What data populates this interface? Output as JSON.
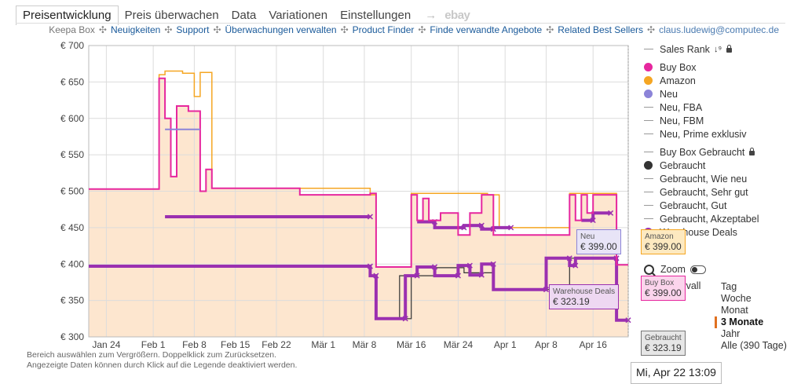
{
  "tabs": [
    {
      "label": "Preisentwicklung",
      "active": true
    },
    {
      "label": "Preis überwachen",
      "active": false
    },
    {
      "label": "Data",
      "active": false
    },
    {
      "label": "Variationen",
      "active": false
    },
    {
      "label": "Einstellungen",
      "active": false
    }
  ],
  "tabs_arrow": "→",
  "tabs_ebay": "ebay",
  "links": {
    "brand": "Keepa Box",
    "items": [
      "Neuigkeiten",
      "Support",
      "Überwachungen verwalten",
      "Product Finder",
      "Finde verwandte Angebote",
      "Related Best Sellers"
    ],
    "email": "claus.ludewig@computec.de",
    "separator": "✣"
  },
  "legend": {
    "sales_rank": "Sales Rank",
    "items": [
      {
        "label": "Buy Box",
        "color": "#e6279e",
        "kind": "dot"
      },
      {
        "label": "Amazon",
        "color": "#f5a623",
        "kind": "dot"
      },
      {
        "label": "Neu",
        "color": "#8c84d8",
        "kind": "dot"
      },
      {
        "label": "Neu, FBA",
        "kind": "line"
      },
      {
        "label": "Neu, FBM",
        "kind": "line"
      },
      {
        "label": "Neu, Prime exklusiv",
        "kind": "line"
      }
    ],
    "used_items": [
      {
        "label": "Buy Box Gebraucht",
        "kind": "line",
        "lock": true
      },
      {
        "label": "Gebraucht",
        "color": "#333333",
        "kind": "dot"
      },
      {
        "label": "Gebraucht, Wie neu",
        "kind": "line"
      },
      {
        "label": "Gebraucht, Sehr gut",
        "kind": "line"
      },
      {
        "label": "Gebraucht, Gut",
        "kind": "line"
      },
      {
        "label": "Gebraucht, Akzeptabel",
        "kind": "line"
      },
      {
        "label": "Warehouse Deals",
        "color": "#9b30b0",
        "kind": "dot"
      }
    ]
  },
  "zoom_label": "Zoom",
  "intervall_label": "tervall",
  "ranges": [
    {
      "label": "Tag",
      "active": false
    },
    {
      "label": "Woche",
      "active": false
    },
    {
      "label": "Monat",
      "active": false
    },
    {
      "label": "3 Monate",
      "active": true
    },
    {
      "label": "Jahr",
      "active": false
    },
    {
      "label": "Alle (390 Tage)",
      "active": false
    }
  ],
  "help": [
    "Bereich auswählen zum Vergrößern. Doppelklick zum Zurücksetzen.",
    "Angezeigte Daten können durch Klick auf die Legende deaktiviert werden."
  ],
  "tooltips": {
    "neu": {
      "title": "Neu",
      "value": "€ 399.00",
      "bg": "#e8e4f7"
    },
    "amazon": {
      "title": "Amazon",
      "value": "€ 399.00",
      "bg": "#fde9c0"
    },
    "buybox": {
      "title": "Buy Box",
      "value": "€ 399.00",
      "bg": "#fbd4ec"
    },
    "warehouse": {
      "title": "Warehouse Deals",
      "value": "€ 323.19",
      "bg": "#eed8f2"
    },
    "gebraucht": {
      "title": "Gebraucht",
      "value": "€ 323.19",
      "bg": "#e6e6e6"
    }
  },
  "hover_date": "Mi, Apr 22 13:09",
  "colors": {
    "buybox": "#e6279e",
    "amazon": "#f5a623",
    "neu": "#8c84d8",
    "used": "#333333",
    "warehouse": "#9b30b0",
    "fill": "#fde6cf"
  },
  "chart_data": {
    "type": "line",
    "yunit": "€",
    "ylim": [
      300,
      700
    ],
    "yticks": [
      300,
      350,
      400,
      450,
      500,
      550,
      600,
      650,
      700
    ],
    "xlim": [
      "2020-01-21",
      "2020-04-22"
    ],
    "xticks": [
      {
        "label": "Jan 24",
        "date": "2020-01-24"
      },
      {
        "label": "Feb 1",
        "date": "2020-02-01"
      },
      {
        "label": "Feb 8",
        "date": "2020-02-08"
      },
      {
        "label": "Feb 15",
        "date": "2020-02-15"
      },
      {
        "label": "Feb 22",
        "date": "2020-02-22"
      },
      {
        "label": "Mär 1",
        "date": "2020-03-01"
      },
      {
        "label": "Mär 8",
        "date": "2020-03-08"
      },
      {
        "label": "Mär 16",
        "date": "2020-03-16"
      },
      {
        "label": "Mär 24",
        "date": "2020-03-24"
      },
      {
        "label": "Apr 1",
        "date": "2020-04-01"
      },
      {
        "label": "Apr 8",
        "date": "2020-04-08"
      },
      {
        "label": "Apr 16",
        "date": "2020-04-16"
      }
    ],
    "series": [
      {
        "name": "Amazon",
        "key": "amazon",
        "points": [
          [
            "2020-01-21",
            503
          ],
          [
            "2020-02-02",
            503
          ],
          [
            "2020-02-02",
            660
          ],
          [
            "2020-02-03",
            660
          ],
          [
            "2020-02-03",
            665
          ],
          [
            "2020-02-06",
            665
          ],
          [
            "2020-02-06",
            662
          ],
          [
            "2020-02-08",
            662
          ],
          [
            "2020-02-08",
            630
          ],
          [
            "2020-02-09",
            630
          ],
          [
            "2020-02-09",
            663
          ],
          [
            "2020-02-11",
            663
          ],
          [
            "2020-02-11",
            504
          ],
          [
            "2020-03-09",
            504
          ],
          [
            "2020-03-09",
            495
          ],
          [
            "2020-03-10",
            495
          ],
          [
            "2020-03-10",
            396
          ],
          [
            "2020-03-16",
            396
          ],
          [
            "2020-03-16",
            497
          ],
          [
            "2020-03-29",
            497
          ],
          [
            "2020-03-29",
            495
          ],
          [
            "2020-03-31",
            495
          ],
          [
            "2020-03-31",
            450
          ],
          [
            "2020-04-12",
            450
          ],
          [
            "2020-04-12",
            497
          ],
          [
            "2020-04-20",
            497
          ],
          [
            "2020-04-20",
            399
          ],
          [
            "2020-04-22",
            399
          ]
        ]
      },
      {
        "name": "Buy Box",
        "key": "buybox",
        "points": [
          [
            "2020-01-21",
            503
          ],
          [
            "2020-02-02",
            503
          ],
          [
            "2020-02-02",
            655
          ],
          [
            "2020-02-03",
            655
          ],
          [
            "2020-02-03",
            600
          ],
          [
            "2020-02-04",
            600
          ],
          [
            "2020-02-04",
            520
          ],
          [
            "2020-02-05",
            520
          ],
          [
            "2020-02-05",
            617
          ],
          [
            "2020-02-07",
            617
          ],
          [
            "2020-02-07",
            610
          ],
          [
            "2020-02-09",
            610
          ],
          [
            "2020-02-09",
            610
          ],
          [
            "2020-02-09",
            500
          ],
          [
            "2020-02-10",
            500
          ],
          [
            "2020-02-10",
            530
          ],
          [
            "2020-02-11",
            530
          ],
          [
            "2020-02-11",
            504
          ],
          [
            "2020-02-26",
            504
          ],
          [
            "2020-02-26",
            495
          ],
          [
            "2020-03-09",
            495
          ],
          [
            "2020-03-09",
            497
          ],
          [
            "2020-03-10",
            497
          ],
          [
            "2020-03-10",
            396
          ],
          [
            "2020-03-16",
            396
          ],
          [
            "2020-03-16",
            495
          ],
          [
            "2020-03-17",
            495
          ],
          [
            "2020-03-17",
            460
          ],
          [
            "2020-03-18",
            460
          ],
          [
            "2020-03-18",
            490
          ],
          [
            "2020-03-19",
            490
          ],
          [
            "2020-03-19",
            460
          ],
          [
            "2020-03-21",
            460
          ],
          [
            "2020-03-21",
            470
          ],
          [
            "2020-03-24",
            470
          ],
          [
            "2020-03-24",
            440
          ],
          [
            "2020-03-26",
            440
          ],
          [
            "2020-03-26",
            470
          ],
          [
            "2020-03-28",
            470
          ],
          [
            "2020-03-28",
            495
          ],
          [
            "2020-03-30",
            495
          ],
          [
            "2020-03-30",
            440
          ],
          [
            "2020-04-12",
            440
          ],
          [
            "2020-04-12",
            495
          ],
          [
            "2020-04-13",
            495
          ],
          [
            "2020-04-13",
            460
          ],
          [
            "2020-04-14",
            460
          ],
          [
            "2020-04-14",
            495
          ],
          [
            "2020-04-15",
            495
          ],
          [
            "2020-04-15",
            470
          ],
          [
            "2020-04-16",
            470
          ],
          [
            "2020-04-16",
            495
          ],
          [
            "2020-04-20",
            495
          ],
          [
            "2020-04-20",
            399
          ],
          [
            "2020-04-22",
            399
          ]
        ]
      },
      {
        "name": "Neu",
        "key": "neu",
        "points": [
          [
            "2020-02-03",
            585
          ],
          [
            "2020-02-09",
            585
          ]
        ]
      },
      {
        "name": "Gebraucht",
        "key": "used",
        "points": [
          [
            "2020-03-09",
            384
          ],
          [
            "2020-03-10",
            384
          ],
          [
            "2020-03-10",
            325
          ],
          [
            "2020-03-14",
            325
          ],
          [
            "2020-03-14",
            384
          ],
          [
            "2020-03-15",
            384
          ],
          [
            "2020-03-15",
            325
          ],
          [
            "2020-03-16",
            325
          ],
          [
            "2020-03-16",
            384
          ],
          [
            "2020-03-20",
            384
          ],
          [
            "2020-03-20",
            395
          ],
          [
            "2020-03-25",
            395
          ],
          [
            "2020-03-25",
            388
          ],
          [
            "2020-03-30",
            388
          ],
          [
            "2020-03-30",
            365
          ],
          [
            "2020-04-12",
            365
          ],
          [
            "2020-04-12",
            408
          ],
          [
            "2020-04-20",
            408
          ],
          [
            "2020-04-20",
            323
          ],
          [
            "2020-04-22",
            323
          ]
        ]
      },
      {
        "name": "Warehouse Deals",
        "key": "warehouse",
        "points": [
          [
            "2020-01-21",
            397
          ],
          [
            "2020-03-09",
            397
          ],
          [
            "2020-03-09",
            384
          ],
          [
            "2020-03-10",
            384
          ],
          [
            "2020-03-10",
            325
          ],
          [
            "2020-03-15",
            325
          ],
          [
            "2020-03-15",
            384
          ],
          [
            "2020-03-17",
            384
          ],
          [
            "2020-03-17",
            396
          ],
          [
            "2020-03-20",
            396
          ],
          [
            "2020-03-20",
            384
          ],
          [
            "2020-03-24",
            384
          ],
          [
            "2020-03-24",
            398
          ],
          [
            "2020-03-26",
            398
          ],
          [
            "2020-03-26",
            385
          ],
          [
            "2020-03-28",
            385
          ],
          [
            "2020-03-28",
            400
          ],
          [
            "2020-03-30",
            400
          ],
          [
            "2020-03-30",
            365
          ],
          [
            "2020-04-08",
            365
          ],
          [
            "2020-04-08",
            408
          ],
          [
            "2020-04-12",
            408
          ],
          [
            "2020-04-12",
            398
          ],
          [
            "2020-04-13",
            398
          ],
          [
            "2020-04-13",
            408
          ],
          [
            "2020-04-20",
            408
          ],
          [
            "2020-04-20",
            323
          ],
          [
            "2020-04-22",
            323
          ]
        ]
      },
      {
        "name": "Warehouse Deals (oben)",
        "key": "warehouse",
        "points": [
          [
            "2020-02-03",
            465
          ],
          [
            "2020-03-09",
            465
          ]
        ]
      },
      {
        "name": "Warehouse Deals (Mitte)",
        "key": "warehouse",
        "points": [
          [
            "2020-03-17",
            458
          ],
          [
            "2020-03-20",
            458
          ],
          [
            "2020-03-20",
            450
          ],
          [
            "2020-03-25",
            450
          ],
          [
            "2020-03-25",
            453
          ],
          [
            "2020-03-28",
            453
          ],
          [
            "2020-03-28",
            448
          ],
          [
            "2020-03-30",
            448
          ],
          [
            "2020-03-30",
            450
          ],
          [
            "2020-04-02",
            450
          ]
        ]
      },
      {
        "name": "Warehouse Deals (Apr)",
        "key": "warehouse",
        "points": [
          [
            "2020-04-14",
            460
          ],
          [
            "2020-04-16",
            460
          ],
          [
            "2020-04-16",
            470
          ],
          [
            "2020-04-19",
            470
          ]
        ]
      }
    ]
  }
}
